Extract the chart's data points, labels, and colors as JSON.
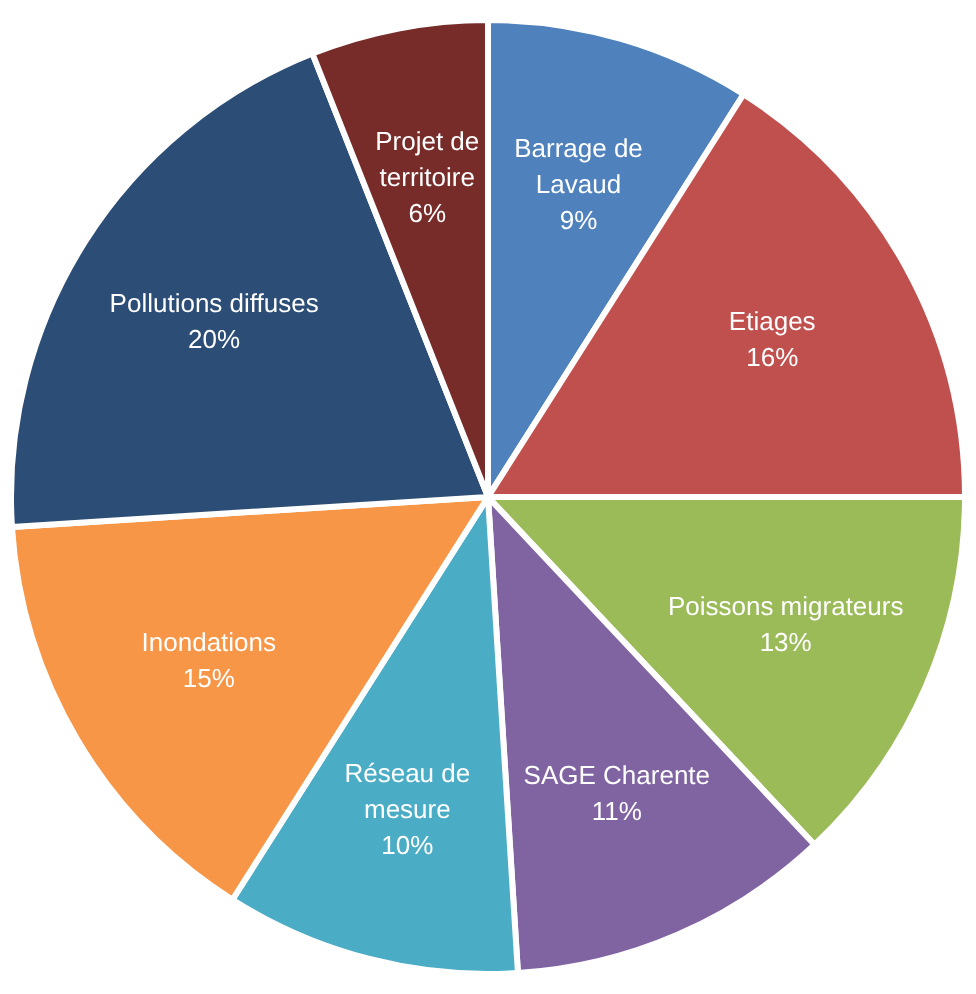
{
  "chart_data": {
    "type": "pie",
    "categories": [
      "Barrage de Lavaud",
      "Etiages",
      "Poissons migrateurs",
      "SAGE Charente",
      "Réseau de mesure",
      "Inondations",
      "Pollutions diffuses",
      "Projet de territoire"
    ],
    "values": [
      9,
      16,
      13,
      11,
      10,
      15,
      20,
      6
    ],
    "value_labels": [
      "9%",
      "16%",
      "13%",
      "11%",
      "10%",
      "15%",
      "20%",
      "6%"
    ],
    "colors": [
      "#4f81bd",
      "#c0504d",
      "#9bbb59",
      "#8064a2",
      "#4bacc6",
      "#f79646",
      "#2c4d75",
      "#772c2a"
    ],
    "legend": false
  }
}
